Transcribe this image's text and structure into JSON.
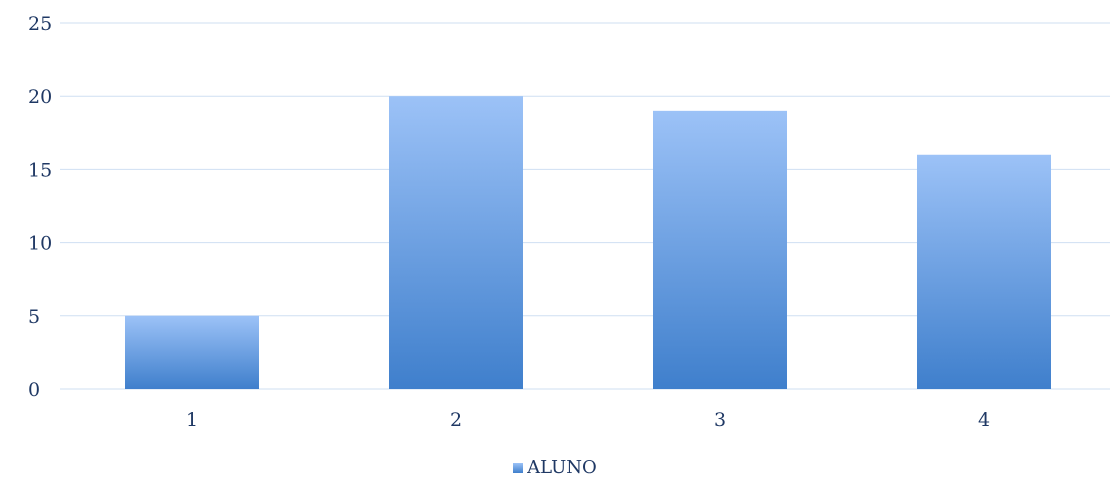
{
  "chart_data": {
    "type": "bar",
    "categories": [
      "1",
      "2",
      "3",
      "4"
    ],
    "series": [
      {
        "name": "ALUNO",
        "values": [
          5,
          20,
          19,
          16
        ]
      }
    ],
    "title": "",
    "xlabel": "",
    "ylabel": "",
    "ylim": [
      0,
      25
    ],
    "yticks": [
      0,
      5,
      10,
      15,
      20,
      25
    ],
    "grid": true,
    "legend_position": "bottom",
    "colors": {
      "bar_top": "#9cc2f7",
      "bar_bottom": "#3f7fcc",
      "grid": "#cfdff2",
      "text": "#1f3864"
    }
  }
}
